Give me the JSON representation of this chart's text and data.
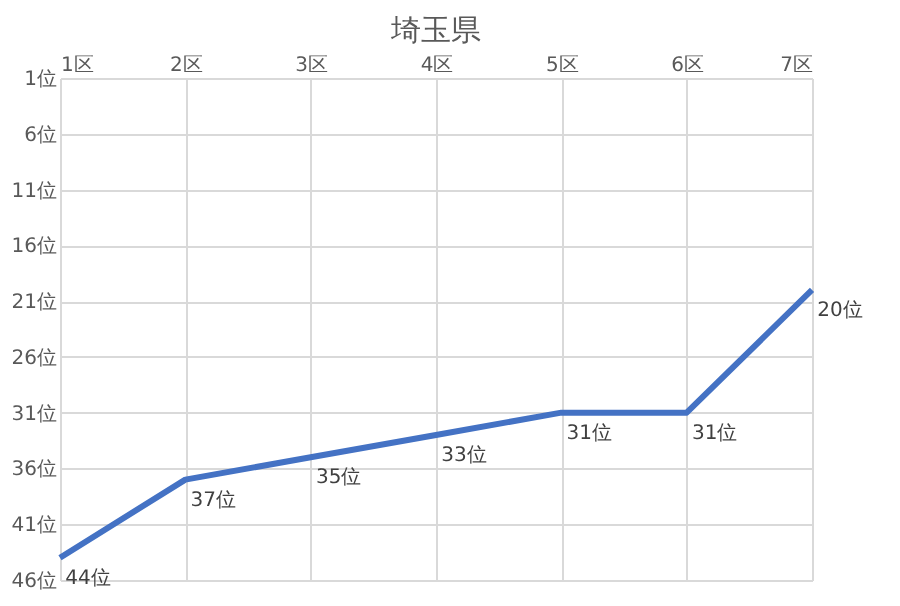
{
  "chart_data": {
    "type": "line",
    "title": "埼玉県",
    "categories": [
      "1区",
      "2区",
      "3区",
      "4区",
      "5区",
      "6区",
      "7区"
    ],
    "series": [
      {
        "color": "#4472c4",
        "values": [
          44,
          37,
          35,
          33,
          31,
          31,
          20
        ],
        "value_labels": [
          "44位",
          "37位",
          "35位",
          "33位",
          "31位",
          "31位",
          "20位"
        ]
      }
    ],
    "ylim": [
      46,
      1
    ],
    "yticks": [
      {
        "value": 1,
        "label": "1位"
      },
      {
        "value": 6,
        "label": "6位"
      },
      {
        "value": 11,
        "label": "11位"
      },
      {
        "value": 16,
        "label": "16位"
      },
      {
        "value": 21,
        "label": "21位"
      },
      {
        "value": 26,
        "label": "26位"
      },
      {
        "value": 31,
        "label": "31位"
      },
      {
        "value": 36,
        "label": "36位"
      },
      {
        "value": 41,
        "label": "41位"
      },
      {
        "value": 46,
        "label": "46位"
      }
    ],
    "grid": true,
    "marker": "none",
    "line_style": "solid"
  }
}
